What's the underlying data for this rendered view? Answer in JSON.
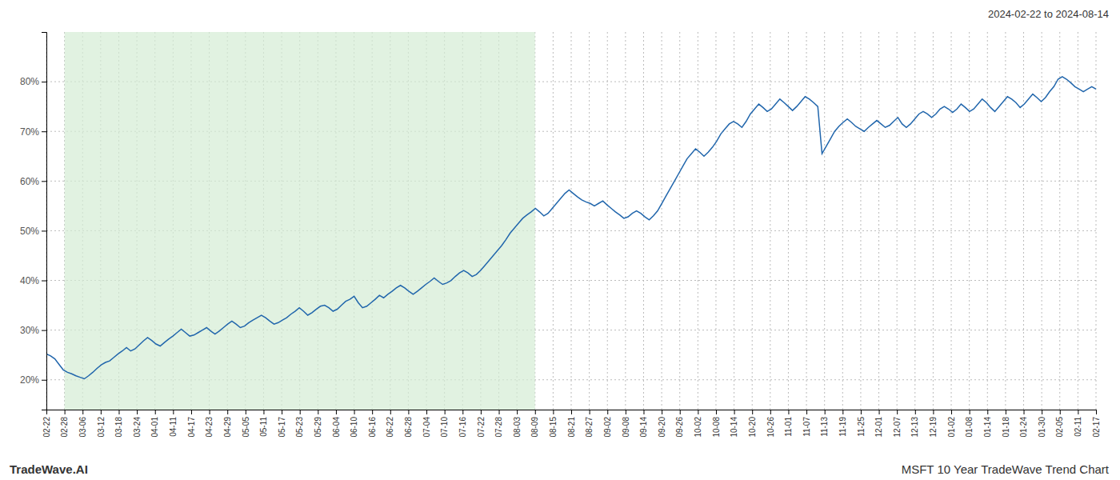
{
  "chart_data": {
    "type": "line",
    "title": "2024-02-22 to 2024-08-14",
    "annotations": [
      "TradeWave.AI",
      "MSFT 10 Year TradeWave Trend Chart"
    ],
    "color": "#2166ac",
    "grid": true,
    "shaded_x": [
      4.293103,
      115.913793
    ],
    "xlim": [
      0,
      249
    ],
    "xticks": [
      {
        "value": 0,
        "label": "02-22"
      },
      {
        "value": 4.293103,
        "label": "02-28"
      },
      {
        "value": 8.586207,
        "label": "03-06"
      },
      {
        "value": 12.87931,
        "label": "03-12"
      },
      {
        "value": 17.172414,
        "label": "03-18"
      },
      {
        "value": 21.465517,
        "label": "03-24"
      },
      {
        "value": 25.758621,
        "label": "04-01"
      },
      {
        "value": 30.051724,
        "label": "04-11"
      },
      {
        "value": 34.344828,
        "label": "04-17"
      },
      {
        "value": 38.637931,
        "label": "04-23"
      },
      {
        "value": 42.931034,
        "label": "04-29"
      },
      {
        "value": 47.224138,
        "label": "05-05"
      },
      {
        "value": 51.517241,
        "label": "05-11"
      },
      {
        "value": 55.810345,
        "label": "05-17"
      },
      {
        "value": 60.103448,
        "label": "05-23"
      },
      {
        "value": 64.396552,
        "label": "05-29"
      },
      {
        "value": 68.689655,
        "label": "06-04"
      },
      {
        "value": 72.982759,
        "label": "06-10"
      },
      {
        "value": 77.275862,
        "label": "06-16"
      },
      {
        "value": 81.568966,
        "label": "06-22"
      },
      {
        "value": 85.862069,
        "label": "06-28"
      },
      {
        "value": 90.155172,
        "label": "07-04"
      },
      {
        "value": 94.448276,
        "label": "07-10"
      },
      {
        "value": 98.741379,
        "label": "07-16"
      },
      {
        "value": 103.034483,
        "label": "07-22"
      },
      {
        "value": 107.327586,
        "label": "07-28"
      },
      {
        "value": 111.62069,
        "label": "08-03"
      },
      {
        "value": 115.913793,
        "label": "08-09"
      },
      {
        "value": 120.206897,
        "label": "08-15"
      },
      {
        "value": 124.5,
        "label": "08-21"
      },
      {
        "value": 128.793103,
        "label": "08-27"
      },
      {
        "value": 133.086207,
        "label": "09-02"
      },
      {
        "value": 137.37931,
        "label": "09-08"
      },
      {
        "value": 141.672414,
        "label": "09-14"
      },
      {
        "value": 145.965517,
        "label": "09-20"
      },
      {
        "value": 150.258621,
        "label": "09-26"
      },
      {
        "value": 154.551724,
        "label": "10-02"
      },
      {
        "value": 158.844828,
        "label": "10-08"
      },
      {
        "value": 163.137931,
        "label": "10-14"
      },
      {
        "value": 167.431034,
        "label": "10-20"
      },
      {
        "value": 171.724138,
        "label": "10-26"
      },
      {
        "value": 176.017241,
        "label": "11-01"
      },
      {
        "value": 180.310345,
        "label": "11-07"
      },
      {
        "value": 184.603448,
        "label": "11-13"
      },
      {
        "value": 188.896552,
        "label": "11-19"
      },
      {
        "value": 193.189655,
        "label": "11-25"
      },
      {
        "value": 197.482759,
        "label": "12-01"
      },
      {
        "value": 201.775862,
        "label": "12-07"
      },
      {
        "value": 206.068966,
        "label": "12-13"
      },
      {
        "value": 210.362069,
        "label": "12-19"
      },
      {
        "value": 214.655172,
        "label": "01-02"
      },
      {
        "value": 218.948276,
        "label": "01-08"
      },
      {
        "value": 223.241379,
        "label": "01-14"
      },
      {
        "value": 227.534483,
        "label": "01-18"
      },
      {
        "value": 231.827586,
        "label": "01-24"
      },
      {
        "value": 236.12069,
        "label": "01-30"
      },
      {
        "value": 240.413793,
        "label": "02-05"
      },
      {
        "value": 244.706897,
        "label": "02-11"
      },
      {
        "value": 249,
        "label": "02-17"
      }
    ],
    "ylim": [
      14,
      90
    ],
    "yticks": [
      {
        "value": 20,
        "label": "20%"
      },
      {
        "value": 30,
        "label": "30%"
      },
      {
        "value": 40,
        "label": "40%"
      },
      {
        "value": 50,
        "label": "50%"
      },
      {
        "value": 60,
        "label": "60%"
      },
      {
        "value": 70,
        "label": "70%"
      },
      {
        "value": 80,
        "label": "80%"
      }
    ],
    "values": [
      25.2,
      24.8,
      24.2,
      23.1,
      22.0,
      21.5,
      21.2,
      20.8,
      20.5,
      20.2,
      20.8,
      21.5,
      22.3,
      23.0,
      23.5,
      23.8,
      24.5,
      25.2,
      25.8,
      26.5,
      25.8,
      26.2,
      27.0,
      27.8,
      28.5,
      27.9,
      27.2,
      26.8,
      27.5,
      28.2,
      28.8,
      29.5,
      30.2,
      29.5,
      28.8,
      29.0,
      29.5,
      30.0,
      30.5,
      29.8,
      29.2,
      29.8,
      30.5,
      31.2,
      31.8,
      31.2,
      30.5,
      30.8,
      31.5,
      32.0,
      32.5,
      33.0,
      32.5,
      31.8,
      31.2,
      31.5,
      32.0,
      32.5,
      33.2,
      33.8,
      34.5,
      33.8,
      33.0,
      33.5,
      34.2,
      34.8,
      35.0,
      34.5,
      33.8,
      34.2,
      35.0,
      35.8,
      36.2,
      36.8,
      35.5,
      34.5,
      34.8,
      35.5,
      36.2,
      37.0,
      36.5,
      37.2,
      37.8,
      38.5,
      39.0,
      38.5,
      37.8,
      37.2,
      37.8,
      38.5,
      39.2,
      39.8,
      40.5,
      39.8,
      39.2,
      39.5,
      40.0,
      40.8,
      41.5,
      42.0,
      41.5,
      40.8,
      41.2,
      42.0,
      43.0,
      44.0,
      45.0,
      46.0,
      47.0,
      48.2,
      49.5,
      50.5,
      51.5,
      52.5,
      53.2,
      53.8,
      54.5,
      53.8,
      53.0,
      53.5,
      54.5,
      55.5,
      56.5,
      57.5,
      58.2,
      57.5,
      56.8,
      56.2,
      55.8,
      55.5,
      55.0,
      55.5,
      56.0,
      55.2,
      54.5,
      53.8,
      53.2,
      52.5,
      52.8,
      53.5,
      54.0,
      53.5,
      52.8,
      52.2,
      53.0,
      54.0,
      55.5,
      57.0,
      58.5,
      60.0,
      61.5,
      63.0,
      64.5,
      65.5,
      66.5,
      65.8,
      65.0,
      65.8,
      66.8,
      68.0,
      69.5,
      70.5,
      71.5,
      72.0,
      71.5,
      70.8,
      72.0,
      73.5,
      74.5,
      75.5,
      74.8,
      74.0,
      74.5,
      75.5,
      76.5,
      75.8,
      75.0,
      74.2,
      75.0,
      76.0,
      77.0,
      76.5,
      75.8,
      75.0,
      65.5,
      67.0,
      68.5,
      70.0,
      71.0,
      71.8,
      72.5,
      71.8,
      71.0,
      70.5,
      70.0,
      70.8,
      71.5,
      72.2,
      71.5,
      70.8,
      71.2,
      72.0,
      72.8,
      71.5,
      70.8,
      71.5,
      72.5,
      73.5,
      74.0,
      73.5,
      72.8,
      73.5,
      74.5,
      75.0,
      74.5,
      73.8,
      74.5,
      75.5,
      74.8,
      74.0,
      74.5,
      75.5,
      76.5,
      75.8,
      74.8,
      74.0,
      75.0,
      76.0,
      77.0,
      76.5,
      75.8,
      74.8,
      75.5,
      76.5,
      77.5,
      76.8,
      76.0,
      76.8,
      78.0,
      79.0,
      80.5,
      81.0,
      80.5,
      79.8,
      79.0,
      78.5,
      78.0,
      78.5,
      79.0,
      78.5
    ]
  }
}
